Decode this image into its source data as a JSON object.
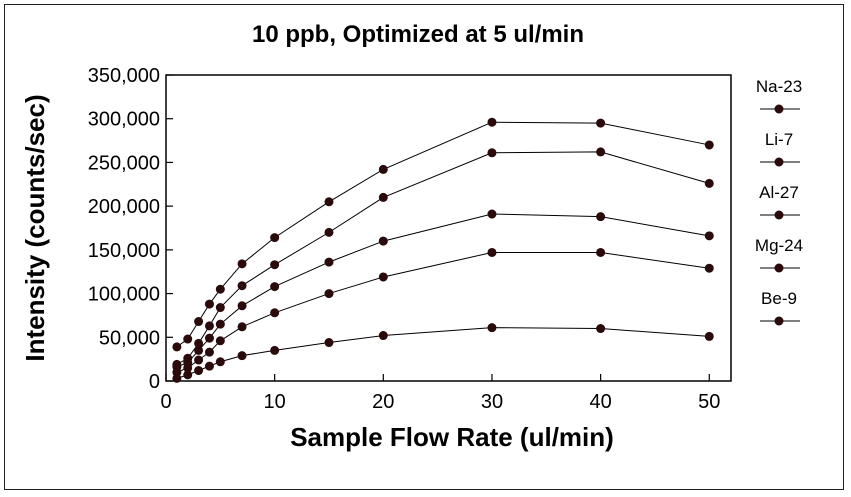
{
  "chart_data": {
    "type": "line",
    "title": "10 ppb, Optimized at 5 ul/min",
    "xlabel": "Sample Flow Rate (ul/min)",
    "ylabel": "Intensity (counts/sec)",
    "xlim": [
      0,
      52
    ],
    "ylim": [
      0,
      350000
    ],
    "xticks": [
      0,
      10,
      20,
      30,
      40,
      50
    ],
    "xtick_labels": [
      "0",
      "10",
      "20",
      "30",
      "40",
      "50"
    ],
    "yticks": [
      0,
      50000,
      100000,
      150000,
      200000,
      250000,
      300000,
      350000
    ],
    "ytick_labels": [
      "0",
      "50,000",
      "100,000",
      "150,000",
      "200,000",
      "250,000",
      "300,000",
      "350,000"
    ],
    "grid": false,
    "legend_position": "right",
    "marker_color": "#2a0a0a",
    "line_color": "#000000",
    "x": [
      1,
      2,
      3,
      4,
      5,
      7,
      10,
      15,
      20,
      30,
      40,
      50
    ],
    "series": [
      {
        "name": "Na-23",
        "values": [
          39000,
          48000,
          68000,
          88000,
          105000,
          134000,
          164000,
          205000,
          242000,
          296000,
          295000,
          270000
        ]
      },
      {
        "name": "Li-7",
        "values": [
          19000,
          26000,
          43000,
          63000,
          84000,
          109000,
          133000,
          170000,
          210000,
          261000,
          262000,
          226000
        ]
      },
      {
        "name": "Al-27",
        "values": [
          16000,
          21000,
          35000,
          49000,
          65000,
          86000,
          108000,
          136000,
          160000,
          191000,
          188000,
          166000
        ]
      },
      {
        "name": "Mg-24",
        "values": [
          10000,
          15000,
          24000,
          33000,
          46000,
          62000,
          78000,
          100000,
          119000,
          147000,
          147000,
          129000
        ]
      },
      {
        "name": "Be-9",
        "values": [
          3000,
          7000,
          12000,
          17000,
          22000,
          29000,
          35000,
          44000,
          52000,
          61000,
          60000,
          51000
        ]
      }
    ]
  }
}
